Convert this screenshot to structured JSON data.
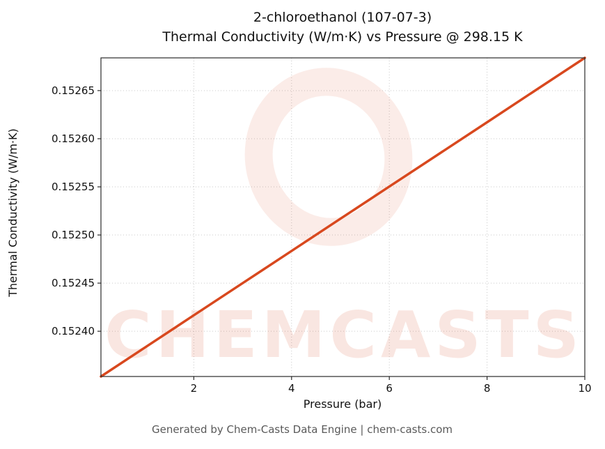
{
  "chart_data": {
    "type": "line",
    "title_line1": "2-chloroethanol (107-07-3)",
    "title_line2": "Thermal Conductivity (W/m·K) vs Pressure @ 298.15 K",
    "xlabel": "Pressure (bar)",
    "ylabel": "Thermal Conductivity (W/m·K)",
    "footer": "Generated by Chem-Casts Data Engine | chem-casts.com",
    "compound": "2-chloroethanol",
    "cas_number": "107-07-3",
    "temperature_label": "298.15 K",
    "x": [
      0.1,
      1,
      2,
      3,
      4,
      5,
      6,
      7,
      8,
      9,
      10
    ],
    "y": [
      0.152353,
      0.1523831,
      0.1524166,
      0.15245,
      0.1524834,
      0.1525169,
      0.1525503,
      0.1525837,
      0.1526171,
      0.1526506,
      0.152684
    ],
    "xlim": [
      0.1,
      10
    ],
    "ylim": [
      0.152353,
      0.152684
    ],
    "xticks": [
      2,
      4,
      6,
      8,
      10
    ],
    "xtick_labels": [
      "2",
      "4",
      "6",
      "8",
      "10"
    ],
    "yticks": [
      0.1524,
      0.15245,
      0.1525,
      0.15255,
      0.1526,
      0.15265
    ],
    "ytick_labels": [
      "0.15240",
      "0.15245",
      "0.15250",
      "0.15255",
      "0.15260",
      "0.15265"
    ],
    "grid": true,
    "legend_position": "none",
    "line_color": "#d8481e",
    "grid_color": "#c9c9c9",
    "spine_color": "#2a2a2a",
    "watermark": {
      "text": "CHEMCASTS",
      "color": "#d8481e",
      "text_opacity": 0.13,
      "logo_opacity": 0.1
    }
  }
}
